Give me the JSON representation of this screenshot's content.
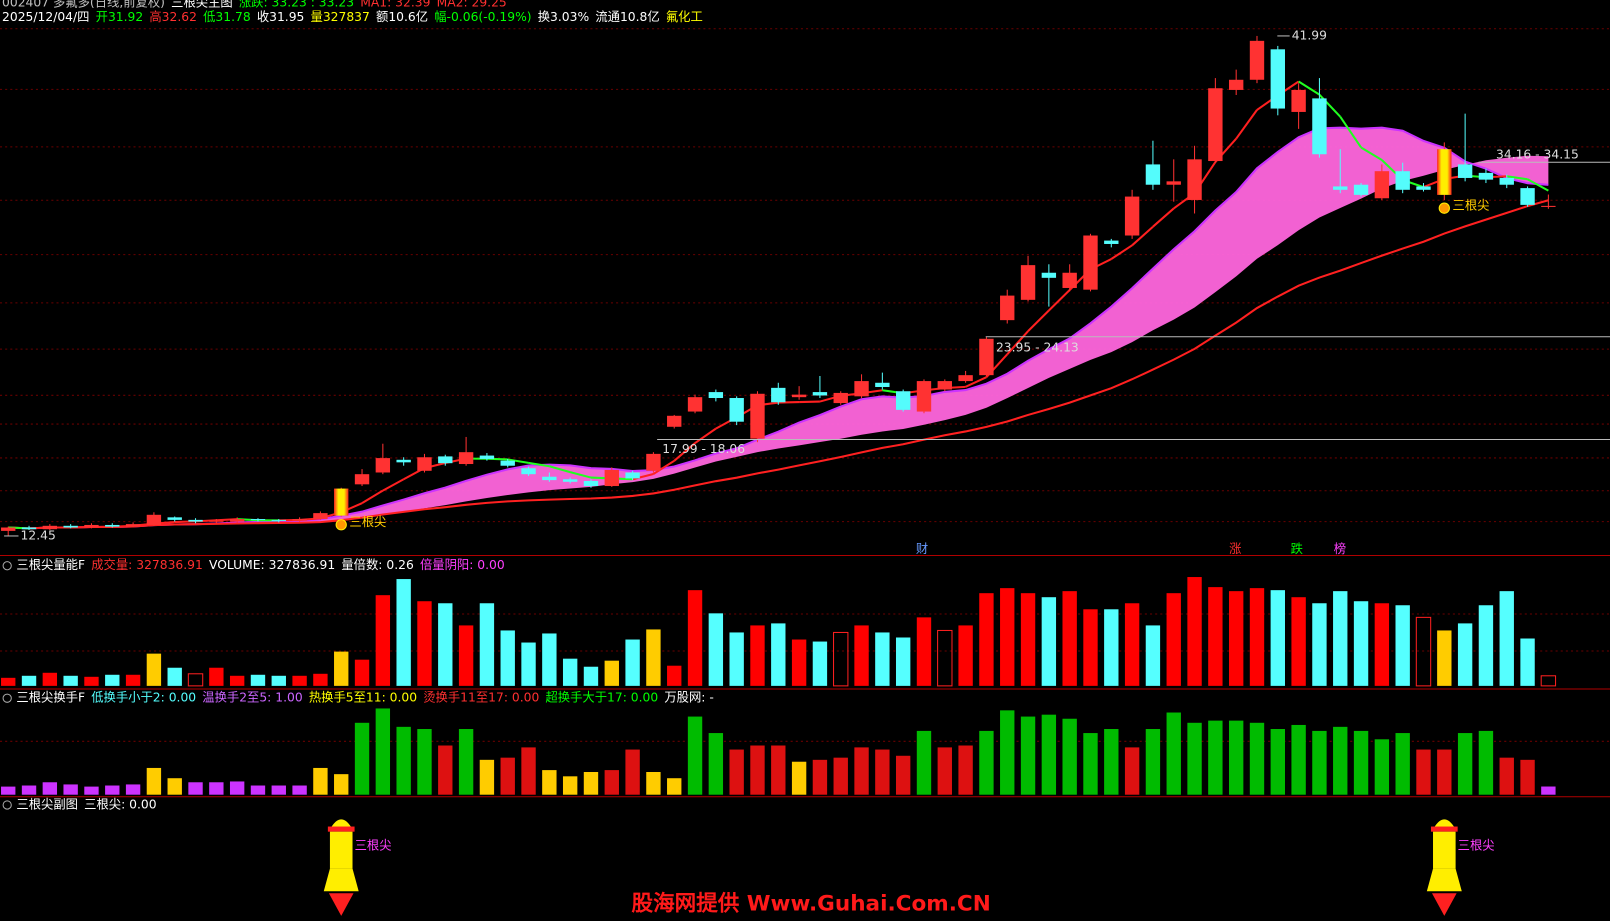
{
  "chart_data": [
    {
      "type": "candlestick",
      "title": "三根尖主图",
      "security": "002407 多氟多(日线,前复权)",
      "header": [
        {
          "text": "涨跌: 33.23 : 33.23",
          "color": "#00ff00"
        },
        {
          "text": "MA1: 32.39",
          "color": "#ff3030"
        },
        {
          "text": "MA2: 29.25",
          "color": "#ff3030"
        }
      ],
      "info": [
        {
          "text": "2025/12/04/四",
          "color": "#ffffff"
        },
        {
          "text": "开31.92",
          "color": "#00ff00"
        },
        {
          "text": "高32.62",
          "color": "#ff3030"
        },
        {
          "text": "低31.78",
          "color": "#00ff00"
        },
        {
          "text": "收31.95",
          "color": "#ffffff"
        },
        {
          "text": "量327837",
          "color": "#ffff00"
        },
        {
          "text": "额10.6亿",
          "color": "#ffffff"
        },
        {
          "text": "幅-0.06(-0.19%)",
          "color": "#00ff00"
        },
        {
          "text": "换3.03%",
          "color": "#ffffff"
        },
        {
          "text": "流通10.8亿",
          "color": "#ffffff"
        },
        {
          "text": "氟化工",
          "color": "#ffff00"
        }
      ],
      "open": [
        12.75,
        12.95,
        12.85,
        13.05,
        12.95,
        13.1,
        13.0,
        13.1,
        13.55,
        13.4,
        13.3,
        13.3,
        13.45,
        13.4,
        13.35,
        13.45,
        13.65,
        15.5,
        16.2,
        16.95,
        16.3,
        17.15,
        16.7,
        17.2,
        16.9,
        16.45,
        15.95,
        15.8,
        15.7,
        15.4,
        16.2,
        16.3,
        18.9,
        19.8,
        20.95,
        20.6,
        18.2,
        21.2,
        20.65,
        20.95,
        20.3,
        20.7,
        21.5,
        21.0,
        19.8,
        21.1,
        21.6,
        21.95,
        25.2,
        26.4,
        28.0,
        27.1,
        27.0,
        29.9,
        30.2,
        34.4,
        33.2,
        32.3,
        34.6,
        38.8,
        39.4,
        41.2,
        37.5,
        38.3,
        33.1,
        33.2,
        32.4,
        34.0,
        33.1,
        32.6,
        34.4,
        33.9,
        33.6,
        33.0,
        31.92
      ],
      "high": [
        13.0,
        13.05,
        13.15,
        13.15,
        13.2,
        13.2,
        13.25,
        13.85,
        13.6,
        13.5,
        13.45,
        13.55,
        13.5,
        13.45,
        13.55,
        13.9,
        15.3,
        16.4,
        17.9,
        17.1,
        17.3,
        17.25,
        18.3,
        17.35,
        17.0,
        16.55,
        16.2,
        15.9,
        15.8,
        16.5,
        16.3,
        17.4,
        19.6,
        20.8,
        21.1,
        20.7,
        21.0,
        21.5,
        21.3,
        21.9,
        21.0,
        22.0,
        22.1,
        21.1,
        21.7,
        21.7,
        22.2,
        24.2,
        27.0,
        29.0,
        28.5,
        28.5,
        30.3,
        30.0,
        32.9,
        35.8,
        34.7,
        35.5,
        39.5,
        40.0,
        41.99,
        41.4,
        39.2,
        39.5,
        35.3,
        33.3,
        34.4,
        34.5,
        33.3,
        35.7,
        37.4,
        34.16,
        33.8,
        33.1,
        32.62
      ],
      "low": [
        12.45,
        12.8,
        12.8,
        12.9,
        12.9,
        12.95,
        12.95,
        13.05,
        13.3,
        13.2,
        13.2,
        13.25,
        13.3,
        13.25,
        13.3,
        13.4,
        13.6,
        15.4,
        16.1,
        16.6,
        16.2,
        16.6,
        16.6,
        16.9,
        16.5,
        16.0,
        15.65,
        15.55,
        15.3,
        15.35,
        15.75,
        16.2,
        18.8,
        19.7,
        20.4,
        19.0,
        17.99,
        20.2,
        20.5,
        20.6,
        20.2,
        20.6,
        21.1,
        19.8,
        19.7,
        21.0,
        21.5,
        21.9,
        25.0,
        26.3,
        26.0,
        26.9,
        26.9,
        29.5,
        30.0,
        32.9,
        32.2,
        31.5,
        34.5,
        38.5,
        39.2,
        37.3,
        36.5,
        34.8,
        32.7,
        32.5,
        32.3,
        32.7,
        32.8,
        32.3,
        33.4,
        33.3,
        33.0,
        31.9,
        31.78
      ],
      "close": [
        12.95,
        12.85,
        13.05,
        12.95,
        13.1,
        13.0,
        13.15,
        13.7,
        13.4,
        13.3,
        13.35,
        13.45,
        13.4,
        13.35,
        13.45,
        13.8,
        15.25,
        16.1,
        17.05,
        16.8,
        17.1,
        16.75,
        17.4,
        17.0,
        16.6,
        16.1,
        15.75,
        15.65,
        15.4,
        16.35,
        15.85,
        17.3,
        19.55,
        20.65,
        20.6,
        19.2,
        20.85,
        20.35,
        20.8,
        20.75,
        20.9,
        21.6,
        21.25,
        19.9,
        21.6,
        21.6,
        21.95,
        24.1,
        26.65,
        28.45,
        27.7,
        28.0,
        30.2,
        29.7,
        32.5,
        33.2,
        33.4,
        34.7,
        38.9,
        39.4,
        41.7,
        37.7,
        38.8,
        35.0,
        32.9,
        32.6,
        34.0,
        32.9,
        32.9,
        35.3,
        33.6,
        33.5,
        33.2,
        32.01,
        31.95
      ],
      "up_color": "#ff3232",
      "down_color": "#54fcfc",
      "annotations": [
        "41.99",
        "12.45",
        "34.16 - 34.15",
        "23.95 - 24.13",
        "17.99 - 18.06"
      ],
      "event_markers": [
        {
          "text": "财",
          "color": "#6699ff"
        },
        {
          "text": "涨",
          "color": "#ff3030"
        },
        {
          "text": "跌",
          "color": "#00ff00"
        },
        {
          "text": "榜",
          "color": "#ff40ff"
        }
      ]
    },
    {
      "type": "bar",
      "title": "三根尖量能F",
      "header": [
        {
          "text": "成交量: 327836.91",
          "color": "#ff3030"
        },
        {
          "text": "VOLUME: 327836.91",
          "color": "#ffffff"
        },
        {
          "text": "量倍数: 0.26",
          "color": "#ffffff"
        },
        {
          "text": "倍量阴阳: 0.00",
          "color": "#ff40ff"
        }
      ],
      "values": [
        262000,
        328000,
        426000,
        328000,
        295000,
        361000,
        361000,
        1049000,
        590000,
        393000,
        590000,
        328000,
        361000,
        328000,
        328000,
        393000,
        1115000,
        852000,
        2951000,
        3475000,
        2754000,
        2688000,
        1967000,
        2688000,
        1803000,
        1410000,
        1705000,
        885000,
        623000,
        820000,
        1508000,
        1836000,
        656000,
        3114000,
        2360000,
        1738000,
        1967000,
        2033000,
        1508000,
        1442000,
        1738000,
        1967000,
        1738000,
        1574000,
        2229000,
        1803000,
        1967000,
        3016000,
        3180000,
        3016000,
        2885000,
        3082000,
        2492000,
        2492000,
        2688000,
        1967000,
        3016000,
        3541000,
        3213000,
        3082000,
        3180000,
        3114000,
        2885000,
        2688000,
        3082000,
        2754000,
        2688000,
        2623000,
        2229000,
        1803000,
        2033000,
        2623000,
        3082000,
        1541000,
        327836.91
      ],
      "colors": [
        "#ff0000",
        "#55ffff",
        "#ff0000",
        "#55ffff",
        "#ff0000",
        "#55ffff",
        "#ff0000",
        "#ffcc00",
        "#55ffff",
        "none",
        "#ff0000",
        "#ff0000",
        "#55ffff",
        "#55ffff",
        "#ff0000",
        "#ff0000",
        "#ffcc00",
        "#ff0000",
        "#ff0000",
        "#55ffff",
        "#ff0000",
        "#55ffff",
        "#ff0000",
        "#55ffff",
        "#55ffff",
        "#55ffff",
        "#55ffff",
        "#55ffff",
        "#55ffff",
        "#ffcc00",
        "#55ffff",
        "#ffcc00",
        "#ff0000",
        "#ff0000",
        "#55ffff",
        "#55ffff",
        "#ff0000",
        "#55ffff",
        "#ff0000",
        "#55ffff",
        "none",
        "#ff0000",
        "#55ffff",
        "#55ffff",
        "#ff0000",
        "none",
        "#ff0000",
        "#ff0000",
        "#ff0000",
        "#ff0000",
        "#55ffff",
        "#ff0000",
        "#ff0000",
        "#55ffff",
        "#ff0000",
        "#55ffff",
        "#ff0000",
        "#ff0000",
        "#ff0000",
        "#ff0000",
        "#ff0000",
        "#55ffff",
        "#ff0000",
        "#55ffff",
        "#55ffff",
        "#55ffff",
        "#ff0000",
        "#55ffff",
        "none",
        "#ffcc00",
        "#55ffff",
        "#55ffff",
        "#55ffff",
        "#55ffff",
        "none"
      ]
    },
    {
      "type": "bar",
      "title": "三根尖换手F",
      "header": [
        {
          "text": "低换手小于2: 0.00",
          "color": "#55ffff"
        },
        {
          "text": "温换手2至5: 1.00",
          "color": "#cc66ff"
        },
        {
          "text": "热换手5至11: 0.00",
          "color": "#ffff00"
        },
        {
          "text": "烫换手11至17: 0.00",
          "color": "#ff3030"
        },
        {
          "text": "超换手大于17: 0.00",
          "color": "#00ff00"
        },
        {
          "text": "万股网: -",
          "color": "#ffffff"
        }
      ],
      "values": [
        3.0,
        3.4,
        4.6,
        3.8,
        3.0,
        3.4,
        3.8,
        9.9,
        6.1,
        4.6,
        4.6,
        4.9,
        3.4,
        3.4,
        3.4,
        9.9,
        7.6,
        26.6,
        31.9,
        25.1,
        24.3,
        18.2,
        24.3,
        12.9,
        13.7,
        17.5,
        9.1,
        6.8,
        8.4,
        9.1,
        16.7,
        8.4,
        6.1,
        28.9,
        22.8,
        16.7,
        18.2,
        18.2,
        12.2,
        12.9,
        13.7,
        17.5,
        16.7,
        14.4,
        23.6,
        17.5,
        18.2,
        23.6,
        31.2,
        28.9,
        29.6,
        28.1,
        22.8,
        24.3,
        17.5,
        24.3,
        30.4,
        26.6,
        27.4,
        27.4,
        26.6,
        24.3,
        25.8,
        23.6,
        25.1,
        23.6,
        20.5,
        22.8,
        16.7,
        16.7,
        22.8,
        23.6,
        13.7,
        12.9,
        3.03
      ],
      "colors": [
        "#cc33ff",
        "#cc33ff",
        "#cc33ff",
        "#cc33ff",
        "#cc33ff",
        "#cc33ff",
        "#cc33ff",
        "#ffcc00",
        "#ffcc00",
        "#cc33ff",
        "#cc33ff",
        "#cc33ff",
        "#cc33ff",
        "#cc33ff",
        "#cc33ff",
        "#ffcc00",
        "#ffcc00",
        "#00bb00",
        "#00bb00",
        "#00bb00",
        "#00bb00",
        "#dd1111",
        "#00bb00",
        "#ffcc00",
        "#dd1111",
        "#dd1111",
        "#ffcc00",
        "#ffcc00",
        "#ffcc00",
        "#dd1111",
        "#dd1111",
        "#ffcc00",
        "#ffcc00",
        "#00bb00",
        "#00bb00",
        "#dd1111",
        "#dd1111",
        "#dd1111",
        "#ffcc00",
        "#dd1111",
        "#dd1111",
        "#dd1111",
        "#dd1111",
        "#dd1111",
        "#00bb00",
        "#dd1111",
        "#dd1111",
        "#00bb00",
        "#00bb00",
        "#00bb00",
        "#00bb00",
        "#00bb00",
        "#00bb00",
        "#00bb00",
        "#dd1111",
        "#00bb00",
        "#00bb00",
        "#00bb00",
        "#00bb00",
        "#00bb00",
        "#00bb00",
        "#00bb00",
        "#00bb00",
        "#00bb00",
        "#00bb00",
        "#00bb00",
        "#00bb00",
        "#00bb00",
        "#dd1111",
        "#dd1111",
        "#00bb00",
        "#00bb00",
        "#dd1111",
        "#dd1111",
        "#cc33ff"
      ]
    },
    {
      "type": "signal",
      "title": "三根尖副图",
      "header": [
        {
          "text": "三根尖: 0.00",
          "color": "#ffffff"
        }
      ],
      "values": [
        0,
        0,
        0,
        0,
        0,
        0,
        0,
        0,
        0,
        0,
        0,
        0,
        0,
        0,
        0,
        0,
        1,
        0,
        0,
        0,
        0,
        0,
        0,
        0,
        0,
        0,
        0,
        0,
        0,
        0,
        0,
        0,
        0,
        0,
        0,
        0,
        0,
        0,
        0,
        0,
        0,
        0,
        0,
        0,
        0,
        0,
        0,
        0,
        0,
        0,
        0,
        0,
        0,
        0,
        0,
        0,
        0,
        0,
        0,
        0,
        0,
        0,
        0,
        0,
        0,
        0,
        0,
        0,
        0,
        1,
        0,
        0,
        0,
        0,
        0
      ],
      "label": "三根尖"
    }
  ],
  "watermark": "股海网提供 Www.Guhai.Com.CN"
}
